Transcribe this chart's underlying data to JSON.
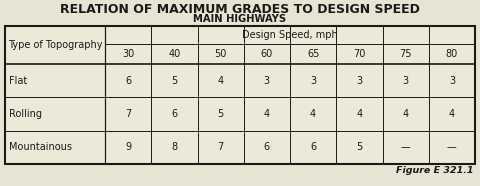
{
  "title": "RELATION OF MAXIMUM GRADES TO DESIGN SPEED",
  "subtitle": "MAIN HIGHWAYS",
  "figure_label": "Figure E 321.1",
  "col_header_label": "Design Speed, mph",
  "row_header": "Type of Topography",
  "speed_cols": [
    "30",
    "40",
    "50",
    "60",
    "65",
    "70",
    "75",
    "80"
  ],
  "rows": [
    {
      "topo": "Flat",
      "values": [
        "6",
        "5",
        "4",
        "3",
        "3",
        "3",
        "3",
        "3"
      ]
    },
    {
      "topo": "Rolling",
      "values": [
        "7",
        "6",
        "5",
        "4",
        "4",
        "4",
        "4",
        "4"
      ]
    },
    {
      "topo": "Mountainous",
      "values": [
        "9",
        "8",
        "7",
        "6",
        "6",
        "5",
        "—",
        "—"
      ]
    }
  ],
  "bg_color": "#e8e4d4",
  "table_bg": "#ede9d8",
  "border_color": "#1a1a1a",
  "text_color": "#1a1a1a",
  "title_fontsize": 9.0,
  "subtitle_fontsize": 7.2,
  "cell_fontsize": 7.0,
  "fig_label_fontsize": 6.8
}
